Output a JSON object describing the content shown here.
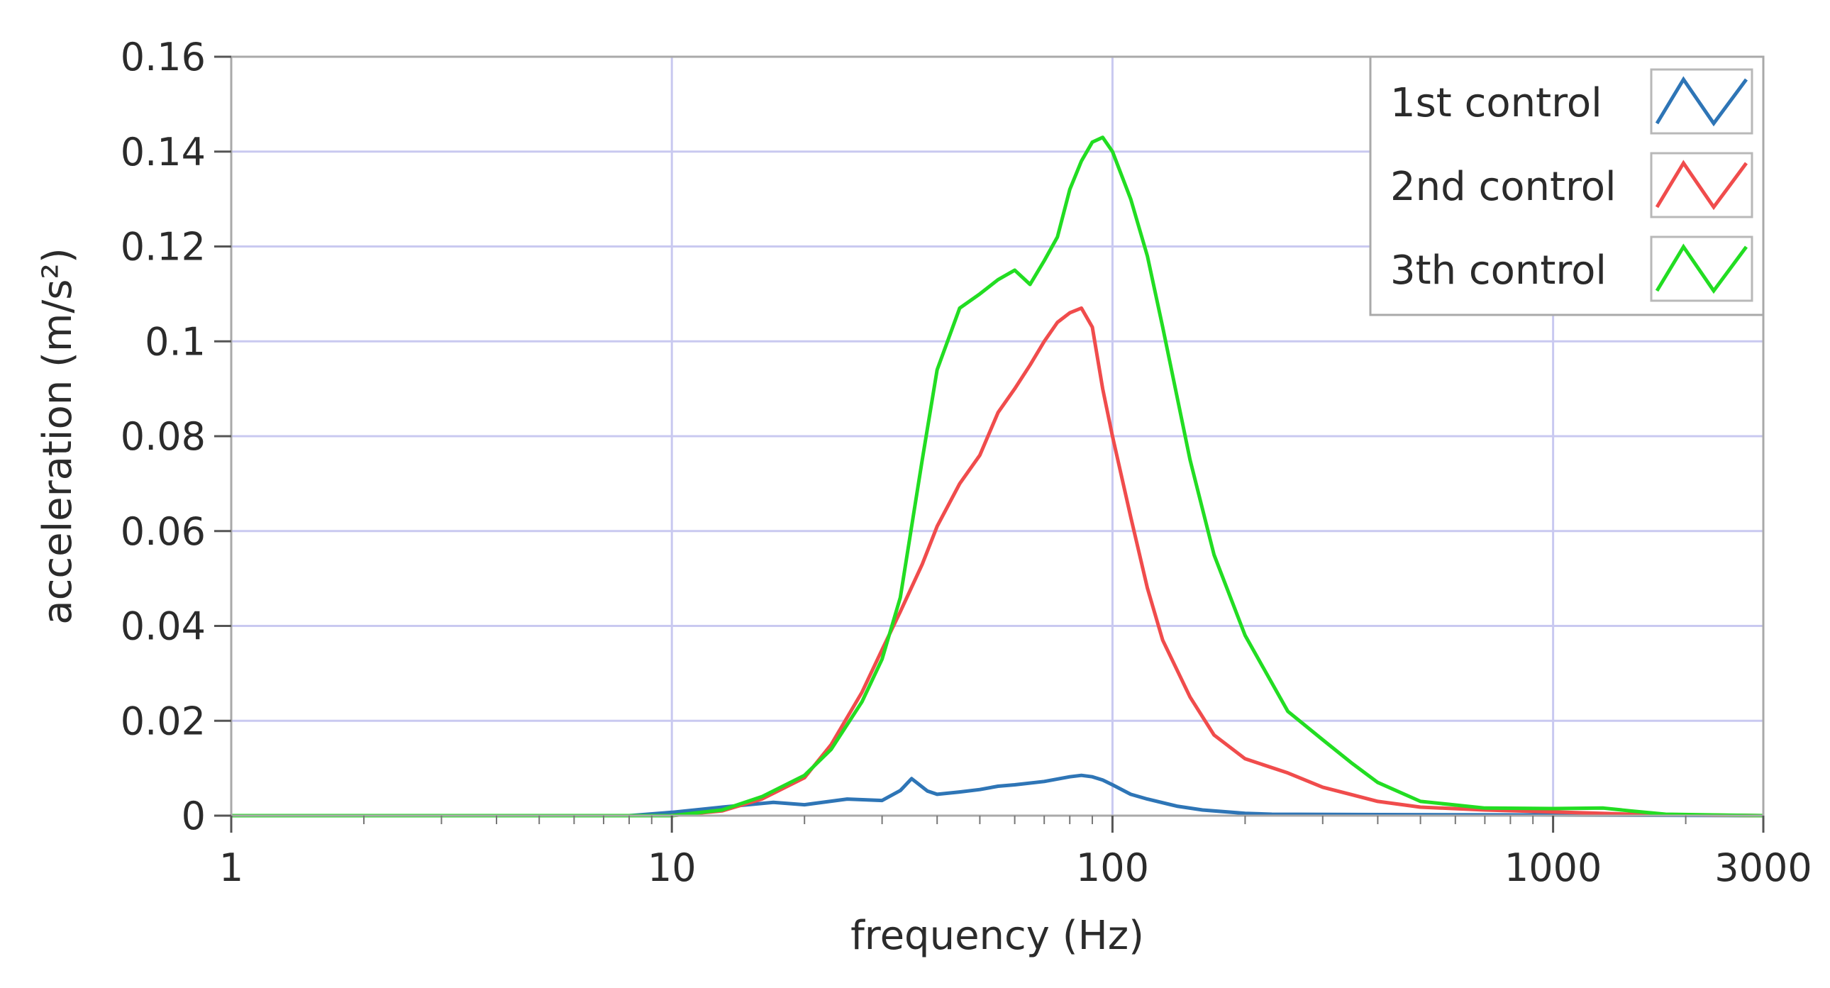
{
  "chart_data": {
    "type": "line",
    "xlabel": "frequency (Hz)",
    "ylabel": "acceleration (m/s²)",
    "x_scale": "log",
    "xlim": [
      1,
      3000
    ],
    "ylim": [
      0,
      0.16
    ],
    "x_ticks": [
      {
        "value": 1,
        "label": "1"
      },
      {
        "value": 10,
        "label": "10"
      },
      {
        "value": 100,
        "label": "100"
      },
      {
        "value": 1000,
        "label": "1000"
      },
      {
        "value": 3000,
        "label": "3000"
      }
    ],
    "y_ticks": [
      {
        "value": 0,
        "label": "0"
      },
      {
        "value": 0.02,
        "label": "0.02"
      },
      {
        "value": 0.04,
        "label": "0.04"
      },
      {
        "value": 0.06,
        "label": "0.06"
      },
      {
        "value": 0.08,
        "label": "0.08"
      },
      {
        "value": 0.1,
        "label": "0.1"
      },
      {
        "value": 0.12,
        "label": "0.12"
      },
      {
        "value": 0.14,
        "label": "0.14"
      },
      {
        "value": 0.16,
        "label": "0.16"
      }
    ],
    "grid": true,
    "grid_color": "#c9c9f0",
    "legend_position": "top-right",
    "series": [
      {
        "name": "1st control",
        "color": "#2e75b6",
        "x": [
          1,
          8,
          10,
          13,
          17,
          20,
          25,
          30,
          33,
          35,
          38,
          40,
          45,
          50,
          55,
          60,
          70,
          80,
          85,
          90,
          95,
          100,
          110,
          120,
          140,
          160,
          200,
          230,
          3000
        ],
        "y": [
          0,
          0,
          0.0007,
          0.0018,
          0.0028,
          0.0023,
          0.0035,
          0.0032,
          0.0053,
          0.0078,
          0.0052,
          0.0045,
          0.005,
          0.0055,
          0.0062,
          0.0065,
          0.0072,
          0.0082,
          0.0085,
          0.0082,
          0.0075,
          0.0065,
          0.0045,
          0.0035,
          0.002,
          0.0012,
          0.0005,
          0.0003,
          0
        ]
      },
      {
        "name": "2nd control",
        "color": "#f04c4c",
        "x": [
          1,
          10,
          13,
          16,
          20,
          23,
          27,
          30,
          33,
          37,
          40,
          45,
          50,
          55,
          60,
          65,
          70,
          75,
          80,
          85,
          90,
          95,
          100,
          110,
          120,
          130,
          150,
          170,
          200,
          250,
          300,
          400,
          500,
          700,
          1000,
          1500,
          3000
        ],
        "y": [
          0,
          0,
          0.001,
          0.0035,
          0.008,
          0.015,
          0.026,
          0.035,
          0.043,
          0.053,
          0.061,
          0.07,
          0.076,
          0.085,
          0.09,
          0.095,
          0.1,
          0.104,
          0.106,
          0.107,
          0.103,
          0.09,
          0.08,
          0.063,
          0.048,
          0.037,
          0.025,
          0.017,
          0.012,
          0.009,
          0.006,
          0.003,
          0.0018,
          0.0012,
          0.0008,
          0.0003,
          0
        ]
      },
      {
        "name": "3th control",
        "color": "#22dd22",
        "x": [
          1,
          10,
          13,
          16,
          20,
          23,
          27,
          30,
          33,
          37,
          40,
          45,
          50,
          55,
          60,
          65,
          70,
          75,
          80,
          85,
          90,
          95,
          100,
          110,
          120,
          130,
          150,
          170,
          200,
          250,
          300,
          350,
          400,
          500,
          700,
          1000,
          1300,
          1500,
          1800,
          3000
        ],
        "y": [
          0,
          0,
          0.0012,
          0.004,
          0.0085,
          0.014,
          0.024,
          0.033,
          0.046,
          0.075,
          0.094,
          0.107,
          0.11,
          0.113,
          0.115,
          0.112,
          0.117,
          0.122,
          0.132,
          0.138,
          0.142,
          0.143,
          0.14,
          0.13,
          0.118,
          0.103,
          0.075,
          0.055,
          0.038,
          0.022,
          0.016,
          0.011,
          0.007,
          0.003,
          0.0016,
          0.0015,
          0.0016,
          0.001,
          0.0003,
          0
        ]
      }
    ]
  }
}
